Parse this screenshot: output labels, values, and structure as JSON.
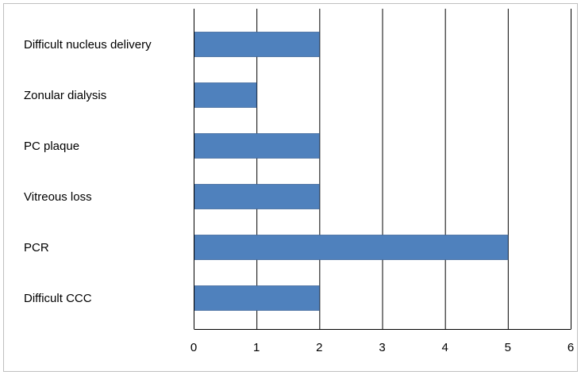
{
  "chart_data": {
    "type": "bar",
    "orientation": "horizontal",
    "categories": [
      "Difficult nucleus delivery",
      "Zonular dialysis",
      "PC plaque",
      "Vitreous loss",
      "PCR",
      "Difficult CCC"
    ],
    "values": [
      2,
      1,
      2,
      2,
      5,
      2
    ],
    "xticks": [
      0,
      1,
      2,
      3,
      4,
      5,
      6
    ],
    "xlim": [
      0,
      6
    ],
    "title": "",
    "xlabel": "",
    "ylabel": "",
    "grid": "vertical",
    "legend": "none",
    "bar_color": "#4f81bd",
    "bar_border_color": "#41689a",
    "gridline_color": "#000000"
  }
}
